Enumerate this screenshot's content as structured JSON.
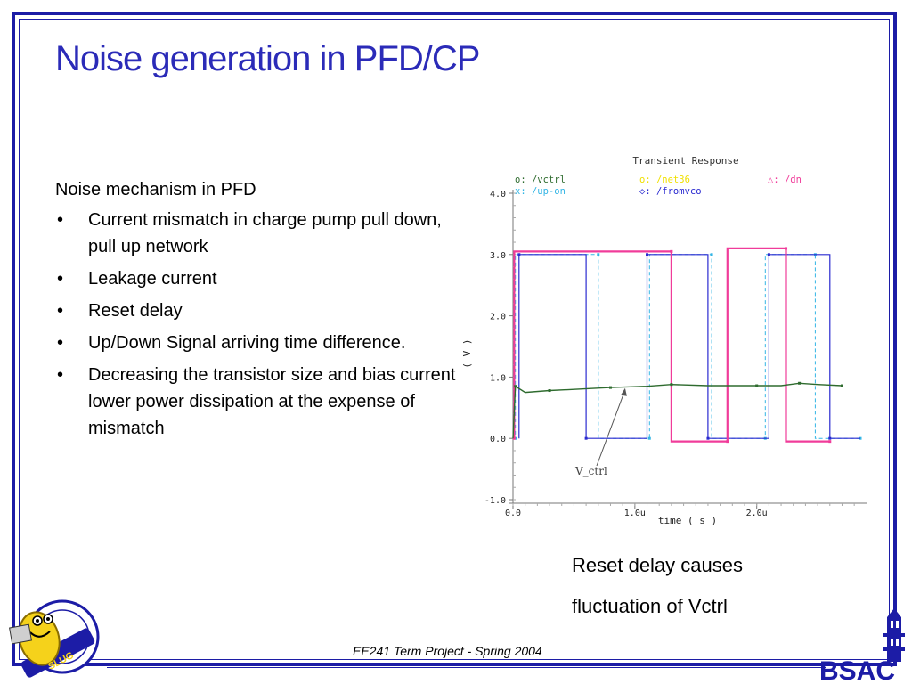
{
  "slide": {
    "title": "Noise generation in PFD/CP",
    "heading": "Noise mechanism in PFD",
    "bullet_char": "•",
    "bullets": [
      "Current mismatch in charge pump pull down, pull up network",
      "Leakage current",
      "Reset delay",
      "Up/Down Signal arriving time difference.",
      "Decreasing the transistor size and bias current lower power dissipation at the expense of mismatch"
    ],
    "caption_line1": "Reset delay causes",
    "caption_line2": "fluctuation of Vctrl",
    "footer": "EE241 Term Project - Spring 2004",
    "logo_right_text": "BSAC",
    "logo_left_text": "SLUG"
  },
  "colors": {
    "frame": "#1c1ca6",
    "title": "#2b2bb8",
    "vctrl": "#2e6b2e",
    "net36": "#f0e000",
    "dn": "#f03c9a",
    "upon": "#33b5e5",
    "fromvco": "#2a2ad0"
  },
  "chart_data": {
    "type": "line",
    "title": "Transient Response",
    "xlabel": "time ( s )",
    "ylabel": "( V )",
    "xlim": [
      0.0,
      2.85
    ],
    "ylim": [
      -1.0,
      4.0
    ],
    "xticks": [
      0.0,
      1.0,
      2.0
    ],
    "xtick_labels": [
      "0.0",
      "1.0u",
      "2.0u"
    ],
    "yticks": [
      -1.0,
      0.0,
      1.0,
      2.0,
      3.0,
      4.0
    ],
    "ytick_labels": [
      "-1.0",
      "0.0",
      "1.0",
      "2.0",
      "3.0",
      "4.0"
    ],
    "legend": [
      {
        "symbol": "o:",
        "name": "/vctrl",
        "color": "#2e6b2e"
      },
      {
        "symbol": "o:",
        "name": "/net36",
        "color": "#f0e000"
      },
      {
        "symbol": "△:",
        "name": "/dn",
        "color": "#f03c9a"
      },
      {
        "symbol": "x:",
        "name": "/up-on",
        "color": "#33b5e5"
      },
      {
        "symbol": "◇:",
        "name": "/fromvco",
        "color": "#2a2ad0"
      }
    ],
    "series": [
      {
        "name": "/vctrl",
        "x": [
          0.0,
          0.02,
          0.1,
          0.3,
          0.5,
          0.8,
          1.1,
          1.3,
          1.6,
          2.0,
          2.2,
          2.35,
          2.5,
          2.7
        ],
        "values": [
          0.0,
          0.85,
          0.75,
          0.78,
          0.8,
          0.83,
          0.85,
          0.88,
          0.86,
          0.86,
          0.86,
          0.9,
          0.88,
          0.86
        ]
      },
      {
        "name": "/dn",
        "x": [
          0.0,
          0.01,
          0.01,
          1.3,
          1.3,
          1.76,
          1.76,
          2.24,
          2.24,
          2.6
        ],
        "values": [
          0.0,
          0.0,
          3.05,
          3.05,
          -0.05,
          -0.05,
          3.1,
          3.1,
          -0.05,
          -0.05
        ]
      },
      {
        "name": "/up-on",
        "x": [
          0.0,
          0.02,
          0.02,
          0.7,
          0.7,
          1.12,
          1.12,
          1.63,
          1.63,
          2.07,
          2.07,
          2.48,
          2.48,
          2.85
        ],
        "values": [
          0.0,
          0.0,
          3.0,
          3.0,
          0.0,
          0.0,
          3.0,
          3.0,
          0.0,
          0.0,
          3.0,
          3.0,
          0.0,
          0.0
        ]
      },
      {
        "name": "/fromvco",
        "x": [
          0.05,
          0.05,
          0.6,
          0.6,
          1.1,
          1.1,
          1.6,
          1.6,
          2.1,
          2.1,
          2.6,
          2.6,
          2.85
        ],
        "values": [
          0.0,
          3.0,
          3.0,
          0.0,
          0.0,
          3.0,
          3.0,
          0.0,
          0.0,
          3.0,
          3.0,
          0.0,
          0.0
        ]
      }
    ],
    "annotation": {
      "text": "V_ctrl",
      "points_to": {
        "x": 0.92,
        "y": 0.85
      }
    }
  }
}
